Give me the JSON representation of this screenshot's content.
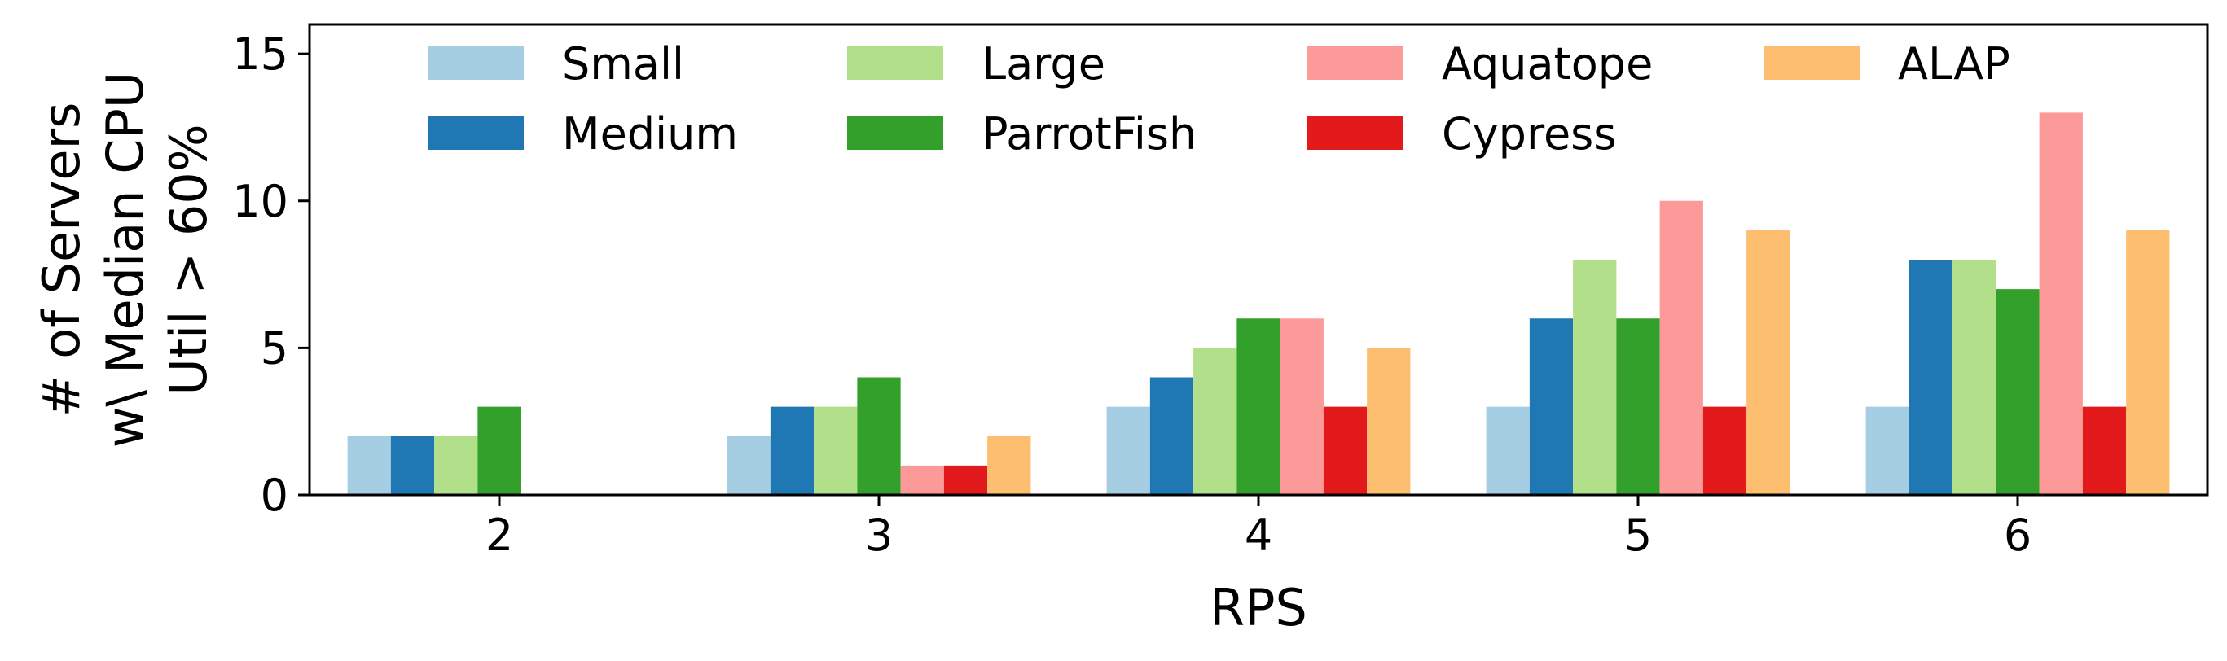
{
  "chart_data": {
    "type": "bar",
    "xlabel": "RPS",
    "ylabel_lines": [
      "# of Servers",
      "w\\ Median CPU",
      "Util > 60%"
    ],
    "categories": [
      "2",
      "3",
      "4",
      "5",
      "6"
    ],
    "ylim": [
      0,
      16
    ],
    "yticks": [
      0,
      5,
      10,
      15
    ],
    "grid": false,
    "legend": {
      "placement": "top",
      "columns": 4
    },
    "series": [
      {
        "name": "Small",
        "color": "#a6cee3",
        "values": [
          2,
          2,
          3,
          3,
          3
        ]
      },
      {
        "name": "Medium",
        "color": "#1f78b4",
        "values": [
          2,
          3,
          4,
          6,
          8
        ]
      },
      {
        "name": "Large",
        "color": "#b2df8a",
        "values": [
          2,
          3,
          5,
          8,
          8
        ]
      },
      {
        "name": "ParrotFish",
        "color": "#33a02c",
        "values": [
          3,
          4,
          6,
          6,
          7
        ]
      },
      {
        "name": "Aquatope",
        "color": "#fb9a99",
        "values": [
          0,
          1,
          6,
          10,
          13
        ]
      },
      {
        "name": "Cypress",
        "color": "#e31a1c",
        "values": [
          0,
          1,
          3,
          3,
          3
        ]
      },
      {
        "name": "ALAP",
        "color": "#fdbf6f",
        "values": [
          0,
          2,
          5,
          9,
          9
        ]
      }
    ]
  }
}
